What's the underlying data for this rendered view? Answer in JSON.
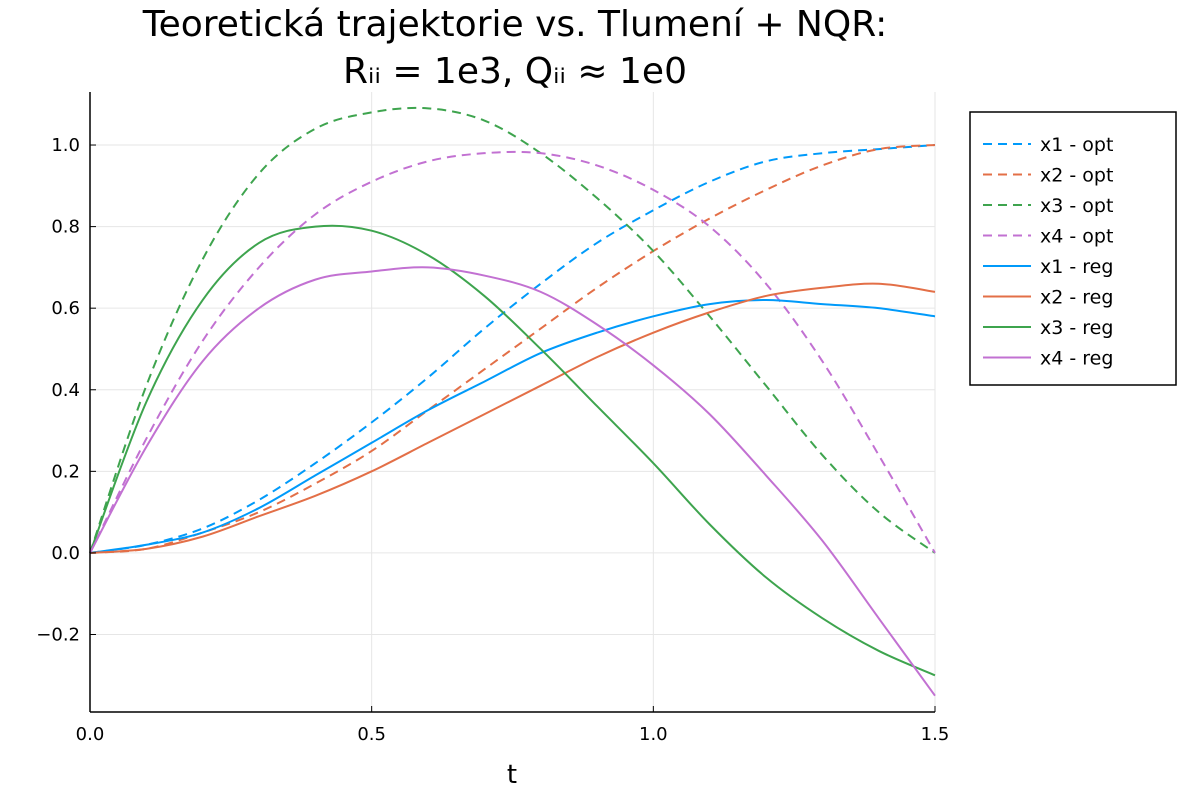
{
  "chart_data": {
    "type": "line",
    "title_line1": "Teoretická trajektorie vs. Tlumení + NQR:",
    "title_line2": "Rᵢᵢ = 1e3, Qᵢᵢ ≈ 1e0",
    "xlabel": "t",
    "ylabel": "",
    "xlim": [
      0,
      1.5
    ],
    "ylim": [
      -0.39,
      1.13
    ],
    "xticks": [
      0,
      0.5,
      1.0,
      1.5
    ],
    "xtick_labels": [
      "0.0",
      "0.5",
      "1.0",
      "1.5"
    ],
    "yticks": [
      -0.2,
      0,
      0.2,
      0.4,
      0.6,
      0.8,
      1.0
    ],
    "ytick_labels": [
      "−0.2",
      "0.0",
      "0.2",
      "0.4",
      "0.6",
      "0.8",
      "1.0"
    ],
    "grid": true,
    "legend_position": "outer-top-right",
    "x": [
      0,
      0.1,
      0.2,
      0.3,
      0.4,
      0.5,
      0.6,
      0.7,
      0.8,
      0.9,
      1.0,
      1.1,
      1.2,
      1.3,
      1.4,
      1.5
    ],
    "series": [
      {
        "name": "x1 - opt",
        "style": "dashed",
        "color": "#009AFA",
        "values": [
          0,
          0.02,
          0.06,
          0.13,
          0.22,
          0.32,
          0.43,
          0.55,
          0.66,
          0.76,
          0.84,
          0.91,
          0.96,
          0.98,
          0.99,
          1.0
        ]
      },
      {
        "name": "x2 - opt",
        "style": "dashed",
        "color": "#E36F47",
        "values": [
          0,
          0.01,
          0.05,
          0.1,
          0.17,
          0.25,
          0.35,
          0.45,
          0.55,
          0.65,
          0.74,
          0.82,
          0.89,
          0.95,
          0.99,
          1.0
        ]
      },
      {
        "name": "x3 - opt",
        "style": "dashed",
        "color": "#3EA44E",
        "values": [
          0,
          0.41,
          0.72,
          0.93,
          1.04,
          1.08,
          1.09,
          1.06,
          0.98,
          0.87,
          0.74,
          0.58,
          0.41,
          0.24,
          0.1,
          0.0
        ]
      },
      {
        "name": "x4 - opt",
        "style": "dashed",
        "color": "#C271D2",
        "values": [
          0,
          0.28,
          0.52,
          0.7,
          0.83,
          0.91,
          0.96,
          0.98,
          0.98,
          0.95,
          0.89,
          0.8,
          0.66,
          0.47,
          0.24,
          0.0
        ]
      },
      {
        "name": "x1 - reg",
        "style": "solid",
        "color": "#009AFA",
        "values": [
          0,
          0.02,
          0.05,
          0.11,
          0.19,
          0.27,
          0.35,
          0.42,
          0.49,
          0.54,
          0.58,
          0.61,
          0.62,
          0.61,
          0.6,
          0.58
        ]
      },
      {
        "name": "x2 - reg",
        "style": "solid",
        "color": "#E36F47",
        "values": [
          0,
          0.01,
          0.04,
          0.09,
          0.14,
          0.2,
          0.27,
          0.34,
          0.41,
          0.48,
          0.54,
          0.59,
          0.63,
          0.65,
          0.66,
          0.64
        ]
      },
      {
        "name": "x3 - reg",
        "style": "solid",
        "color": "#3EA44E",
        "values": [
          0,
          0.37,
          0.62,
          0.76,
          0.8,
          0.79,
          0.73,
          0.63,
          0.5,
          0.36,
          0.22,
          0.07,
          -0.06,
          -0.16,
          -0.24,
          -0.3
        ]
      },
      {
        "name": "x4 - reg",
        "style": "solid",
        "color": "#C271D2",
        "values": [
          0,
          0.26,
          0.47,
          0.6,
          0.67,
          0.69,
          0.7,
          0.68,
          0.64,
          0.56,
          0.46,
          0.34,
          0.19,
          0.03,
          -0.16,
          -0.35
        ]
      }
    ]
  }
}
